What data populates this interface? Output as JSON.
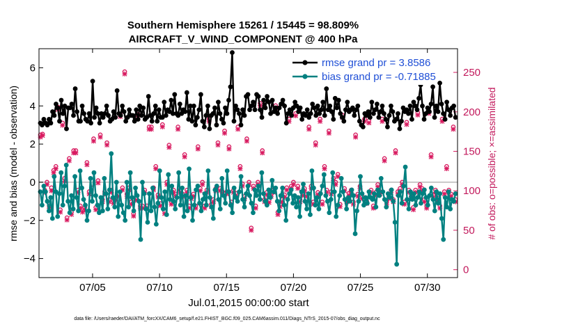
{
  "chart_data": {
    "type": "line",
    "title_line1": "Southern Hemisphere 15261 / 15445 = 98.809%",
    "title_line2": "AIRCRAFT_V_WIND_COMPONENT @ 400 hPa",
    "xlabel": "Jul.01,2015 00:00:00 start",
    "ylabel_left": "rmse and bias (model - observation)",
    "ylabel_right": "# of obs: o=possible; ×=assimilated",
    "ylim_left": [
      -5,
      7
    ],
    "ylim_right": [
      -10,
      280
    ],
    "xlim": [
      1.0,
      32.25
    ],
    "x_ticks": [
      {
        "value": 5,
        "label": "07/05"
      },
      {
        "value": 10,
        "label": "07/10"
      },
      {
        "value": 15,
        "label": "07/15"
      },
      {
        "value": 20,
        "label": "07/20"
      },
      {
        "value": 25,
        "label": "07/25"
      },
      {
        "value": 30,
        "label": "07/30"
      }
    ],
    "y_ticks_left": [
      -4,
      -2,
      0,
      2,
      4,
      6
    ],
    "y_ticks_right": [
      0,
      50,
      100,
      150,
      200,
      250
    ],
    "footer": "data file: /Users/raeder/DAI/ATM_forcXX/CAM6_setup/f.e21.FHIST_BGC.f09_025.CAM6assim.011/Diags_NTrS_2015-07/obs_diag_output.nc",
    "colors": {
      "rmse": "#000000",
      "bias": "#008080",
      "obs": "#d81b60",
      "zero": "#c8c8c8",
      "legend_text": "#1f4fd6"
    },
    "series": [
      {
        "name": "rmse grand pr = 3.8586",
        "axis": "left",
        "values": [
          3.1,
          3.0,
          3.3,
          3.1,
          3.0,
          3.3,
          3.1,
          3.7,
          3.5,
          4.1,
          3.9,
          3.2,
          4.3,
          3.6,
          4.0,
          2.8,
          3.9,
          3.9,
          4.1,
          3.5,
          4.9,
          3.7,
          3.2,
          3.2,
          4.0,
          3.6,
          3.3,
          3.2,
          3.6,
          3.1,
          5.3,
          3.4,
          3.9,
          3.6,
          3.1,
          3.6,
          3.4,
          3.6,
          4.0,
          3.5,
          3.2,
          3.3,
          3.7,
          3.4,
          4.8,
          3.6,
          3.5,
          4.0,
          3.7,
          3.2,
          3.4,
          3.8,
          3.5,
          3.5,
          3.2,
          3.8,
          3.3,
          4.0,
          3.5,
          3.9,
          3.3,
          3.4,
          4.5,
          3.5,
          3.2,
          3.6,
          4.0,
          3.2,
          3.8,
          3.4,
          3.4,
          4.2,
          3.5,
          3.8,
          3.7,
          4.3,
          3.6,
          4.6,
          3.6,
          3.5,
          4.1,
          3.6,
          3.8,
          3.7,
          4.7,
          3.3,
          4.0,
          3.2,
          4.0,
          3.0,
          3.4,
          3.8,
          4.6,
          3.2,
          2.9,
          3.5,
          4.0,
          2.8,
          3.5,
          3.6,
          3.9,
          3.0,
          4.2,
          3.6,
          3.3,
          3.1,
          3.9,
          3.6,
          4.3,
          5.0,
          6.8,
          3.2,
          4.0,
          3.8,
          3.6,
          3.0,
          3.8,
          3.5,
          4.5,
          4.6,
          3.8,
          4.0,
          4.2,
          3.8,
          4.6,
          4.5,
          3.8,
          3.4,
          4.3,
          3.9,
          4.5,
          4.2,
          3.6,
          4.3,
          3.7,
          3.9,
          3.6,
          3.9,
          4.1,
          4.3,
          4.0,
          3.1,
          3.6,
          3.8,
          3.5,
          3.9,
          4.2,
          4.0,
          3.7,
          3.9,
          3.3,
          3.6,
          3.5,
          3.8,
          3.4,
          3.6,
          4.1,
          3.9,
          3.5,
          4.0,
          3.6,
          3.8,
          4.2,
          3.5,
          4.9,
          3.8,
          4.0,
          3.7,
          3.3,
          4.4,
          3.9,
          4.3,
          3.6,
          3.4,
          3.2,
          3.8,
          4.2,
          3.7,
          3.8,
          3.9,
          3.5,
          3.8,
          4.0,
          3.2,
          3.0,
          2.9,
          3.6,
          3.5,
          3.7,
          3.4,
          4.2,
          3.6,
          3.8,
          4.1,
          3.4,
          3.7,
          4.0,
          3.6,
          3.3,
          2.9,
          3.5,
          4.0,
          3.7,
          3.2,
          3.3,
          3.6,
          2.8,
          3.2,
          3.9,
          3.7,
          3.8,
          3.6,
          4.0,
          3.3,
          4.2,
          4.0,
          3.8,
          4.4,
          5.1,
          4.0,
          3.3,
          3.6,
          3.9,
          3.7,
          4.1,
          5.0,
          3.4,
          4.0,
          3.7,
          5.2,
          4.1,
          3.6,
          3.3,
          4.2,
          3.8,
          3.5,
          3.9,
          4.0,
          3.4
        ]
      },
      {
        "name": "bias grand pr = -0.71885",
        "axis": "left",
        "values": [
          -0.5,
          -1.2,
          -0.2,
          -0.5,
          -1.0,
          -1.5,
          -0.8,
          -1.9,
          0.3,
          -0.5,
          -1.8,
          -0.6,
          0.5,
          -1.2,
          -0.2,
          0.9,
          -1.0,
          -1.6,
          -0.7,
          -1.4,
          0.3,
          -0.8,
          -1.5,
          0.6,
          -0.3,
          -0.9,
          -1.2,
          -2.0,
          -1.5,
          0.2,
          -1.0,
          0.5,
          -0.7,
          -1.2,
          -1.6,
          -0.8,
          -1.5,
          0.2,
          -0.6,
          -1.4,
          -0.4,
          1.5,
          -0.8,
          -1.3,
          0.0,
          -1.8,
          -0.5,
          -1.2,
          -1.6,
          -2.0,
          0.0,
          -1.3,
          0.5,
          -0.8,
          -1.5,
          -0.3,
          -0.7,
          -1.0,
          -3.0,
          0.0,
          -0.6,
          -1.4,
          -2.1,
          -0.6,
          -1.5,
          -0.3,
          -1.3,
          -2.2,
          -1.1,
          0.6,
          -0.8,
          -1.4,
          -0.5,
          -1.7,
          0.4,
          -0.9,
          -0.2,
          -1.0,
          -1.4,
          -0.8,
          0.5,
          -1.2,
          -0.3,
          -1.8,
          -0.7,
          -1.5,
          0.7,
          -0.8,
          -2.0,
          -1.2,
          -0.4,
          -0.2,
          -1.1,
          -1.5,
          -0.9,
          -0.6,
          -1.2,
          0.6,
          -0.8,
          -1.3,
          -1.9,
          -0.4,
          -0.2,
          -0.9,
          -1.4,
          0.2,
          -0.7,
          -1.1,
          0.6,
          -0.5,
          -1.2,
          -1.6,
          -0.3,
          -0.8,
          -1.0,
          -0.5,
          0.3,
          -0.9,
          -1.3,
          -0.6,
          -0.2,
          -0.7,
          -1.1,
          -1.6,
          -0.4,
          -0.7,
          -0.2,
          -0.9,
          0.5,
          -0.6,
          -1.0,
          -1.2,
          -0.4,
          -0.8,
          0.1,
          -0.5,
          -0.3,
          -1.0,
          -1.5,
          -0.7,
          -0.3,
          -1.2,
          -2.0,
          -0.9,
          -0.6,
          -0.4,
          -1.1,
          -0.7,
          -1.3,
          -0.8,
          -1.8,
          -0.5,
          -0.1,
          -1.0,
          -1.4,
          -0.6,
          -1.7,
          0.6,
          -0.3,
          -1.2,
          -0.8,
          -1.4,
          -0.6,
          -0.2,
          0.4,
          -0.7,
          -1.0,
          -1.6,
          -0.9,
          0.5,
          -0.5,
          -1.8,
          -1.2,
          -0.7,
          0.2,
          -0.5,
          -0.9,
          -1.4,
          -0.8,
          -1.0,
          -0.4,
          -0.7,
          -2.7,
          -1.5,
          -1.0,
          0.3,
          -0.6,
          -1.2,
          -0.8,
          -1.1,
          -0.5,
          -0.8,
          -0.9,
          -0.6,
          -1.3,
          -0.4,
          -0.7,
          0.2,
          -0.5,
          -0.9,
          -1.3,
          -0.6,
          -0.8,
          -0.4,
          -1.0,
          -2.1,
          -4.3,
          -0.7,
          -0.5,
          -1.1,
          -0.2,
          0.8,
          -0.9,
          -1.4,
          -0.5,
          -0.9,
          -0.6,
          -1.2,
          -0.8,
          -0.5,
          -1.1,
          -0.6,
          -0.4,
          -0.8,
          -1.2,
          -0.7,
          -0.3,
          -0.9,
          -1.5,
          -0.5,
          -1.1,
          -0.6,
          -1.9,
          -3.0,
          -0.8,
          -1.3,
          -0.5,
          -1.4,
          -0.9,
          -1.0,
          -0.6
        ]
      },
      {
        "name": "obs possible",
        "axis": "right",
        "marker": "circle",
        "values": [
          170,
          171,
          100,
          110,
          80,
          103,
          125,
          130,
          205,
          75,
          185,
          115,
          65,
          140,
          72,
          150,
          150,
          100,
          80,
          75,
          78,
          135,
          98,
          103,
          165,
          78,
          112,
          170,
          88,
          98,
          160,
          88,
          100,
          86,
          90,
          95,
          196,
          103,
          250,
          95,
          103,
          85,
          70,
          90,
          196,
          80,
          80,
          100,
          80,
          180,
          180,
          103,
          130,
          94,
          83,
          183,
          73,
          110,
          157,
          85,
          100,
          95,
          180,
          100,
          95,
          145,
          100,
          80,
          92,
          95,
          80,
          155,
          102,
          110,
          80,
          100,
          190,
          82,
          88,
          102,
          160,
          102,
          98,
          175,
          98,
          155,
          85,
          100,
          96,
          180,
          130,
          108,
          92,
          165,
          110,
          52,
          105,
          80,
          110,
          210,
          150,
          88,
          97,
          87,
          95,
          100,
          207,
          72,
          82,
          88,
          94,
          103,
          190,
          105,
          110,
          197,
          105,
          88,
          96,
          102,
          95,
          180,
          105,
          85,
          160,
          97,
          190,
          85,
          130,
          100,
          175,
          98,
          115,
          110,
          120,
          82,
          195,
          102,
          88,
          96,
          100,
          85,
          170,
          95,
          105,
          92,
          190,
          86,
          188,
          100,
          80,
          97,
          107,
          98,
          190,
          140,
          85,
          92,
          100,
          88,
          150,
          98,
          102,
          110,
          85,
          186,
          100,
          92,
          78,
          100,
          198,
          107,
          102,
          88,
          80,
          200,
          145,
          94,
          100,
          90,
          80,
          190,
          98,
          130,
          100,
          95,
          180,
          88
        ]
      },
      {
        "name": "obs assimilated",
        "axis": "right",
        "marker": "x",
        "values": [
          168,
          170,
          98,
          108,
          78,
          100,
          123,
          128,
          203,
          73,
          183,
          112,
          63,
          138,
          70,
          148,
          148,
          98,
          78,
          73,
          76,
          133,
          96,
          101,
          163,
          76,
          110,
          168,
          86,
          96,
          158,
          86,
          98,
          84,
          88,
          93,
          194,
          101,
          248,
          93,
          101,
          83,
          68,
          88,
          194,
          78,
          78,
          98,
          78,
          178,
          178,
          101,
          128,
          92,
          81,
          181,
          71,
          108,
          155,
          83,
          98,
          93,
          178,
          98,
          93,
          143,
          98,
          78,
          90,
          93,
          78,
          153,
          100,
          108,
          78,
          98,
          188,
          80,
          86,
          100,
          158,
          100,
          96,
          173,
          96,
          153,
          83,
          98,
          94,
          178,
          128,
          106,
          90,
          163,
          108,
          50,
          103,
          78,
          108,
          208,
          148,
          86,
          95,
          85,
          93,
          98,
          205,
          70,
          80,
          86,
          92,
          101,
          188,
          103,
          108,
          195,
          103,
          86,
          94,
          100,
          93,
          178,
          103,
          83,
          158,
          95,
          188,
          83,
          128,
          98,
          173,
          96,
          113,
          108,
          118,
          80,
          193,
          100,
          86,
          94,
          98,
          83,
          168,
          93,
          103,
          90,
          188,
          84,
          186,
          98,
          78,
          95,
          105,
          96,
          188,
          138,
          83,
          90,
          98,
          86,
          148,
          96,
          100,
          108,
          83,
          184,
          98,
          90,
          76,
          98,
          196,
          105,
          100,
          86,
          78,
          198,
          143,
          92,
          98,
          88,
          78,
          188,
          96,
          128,
          98,
          93,
          178,
          86
        ]
      }
    ]
  }
}
